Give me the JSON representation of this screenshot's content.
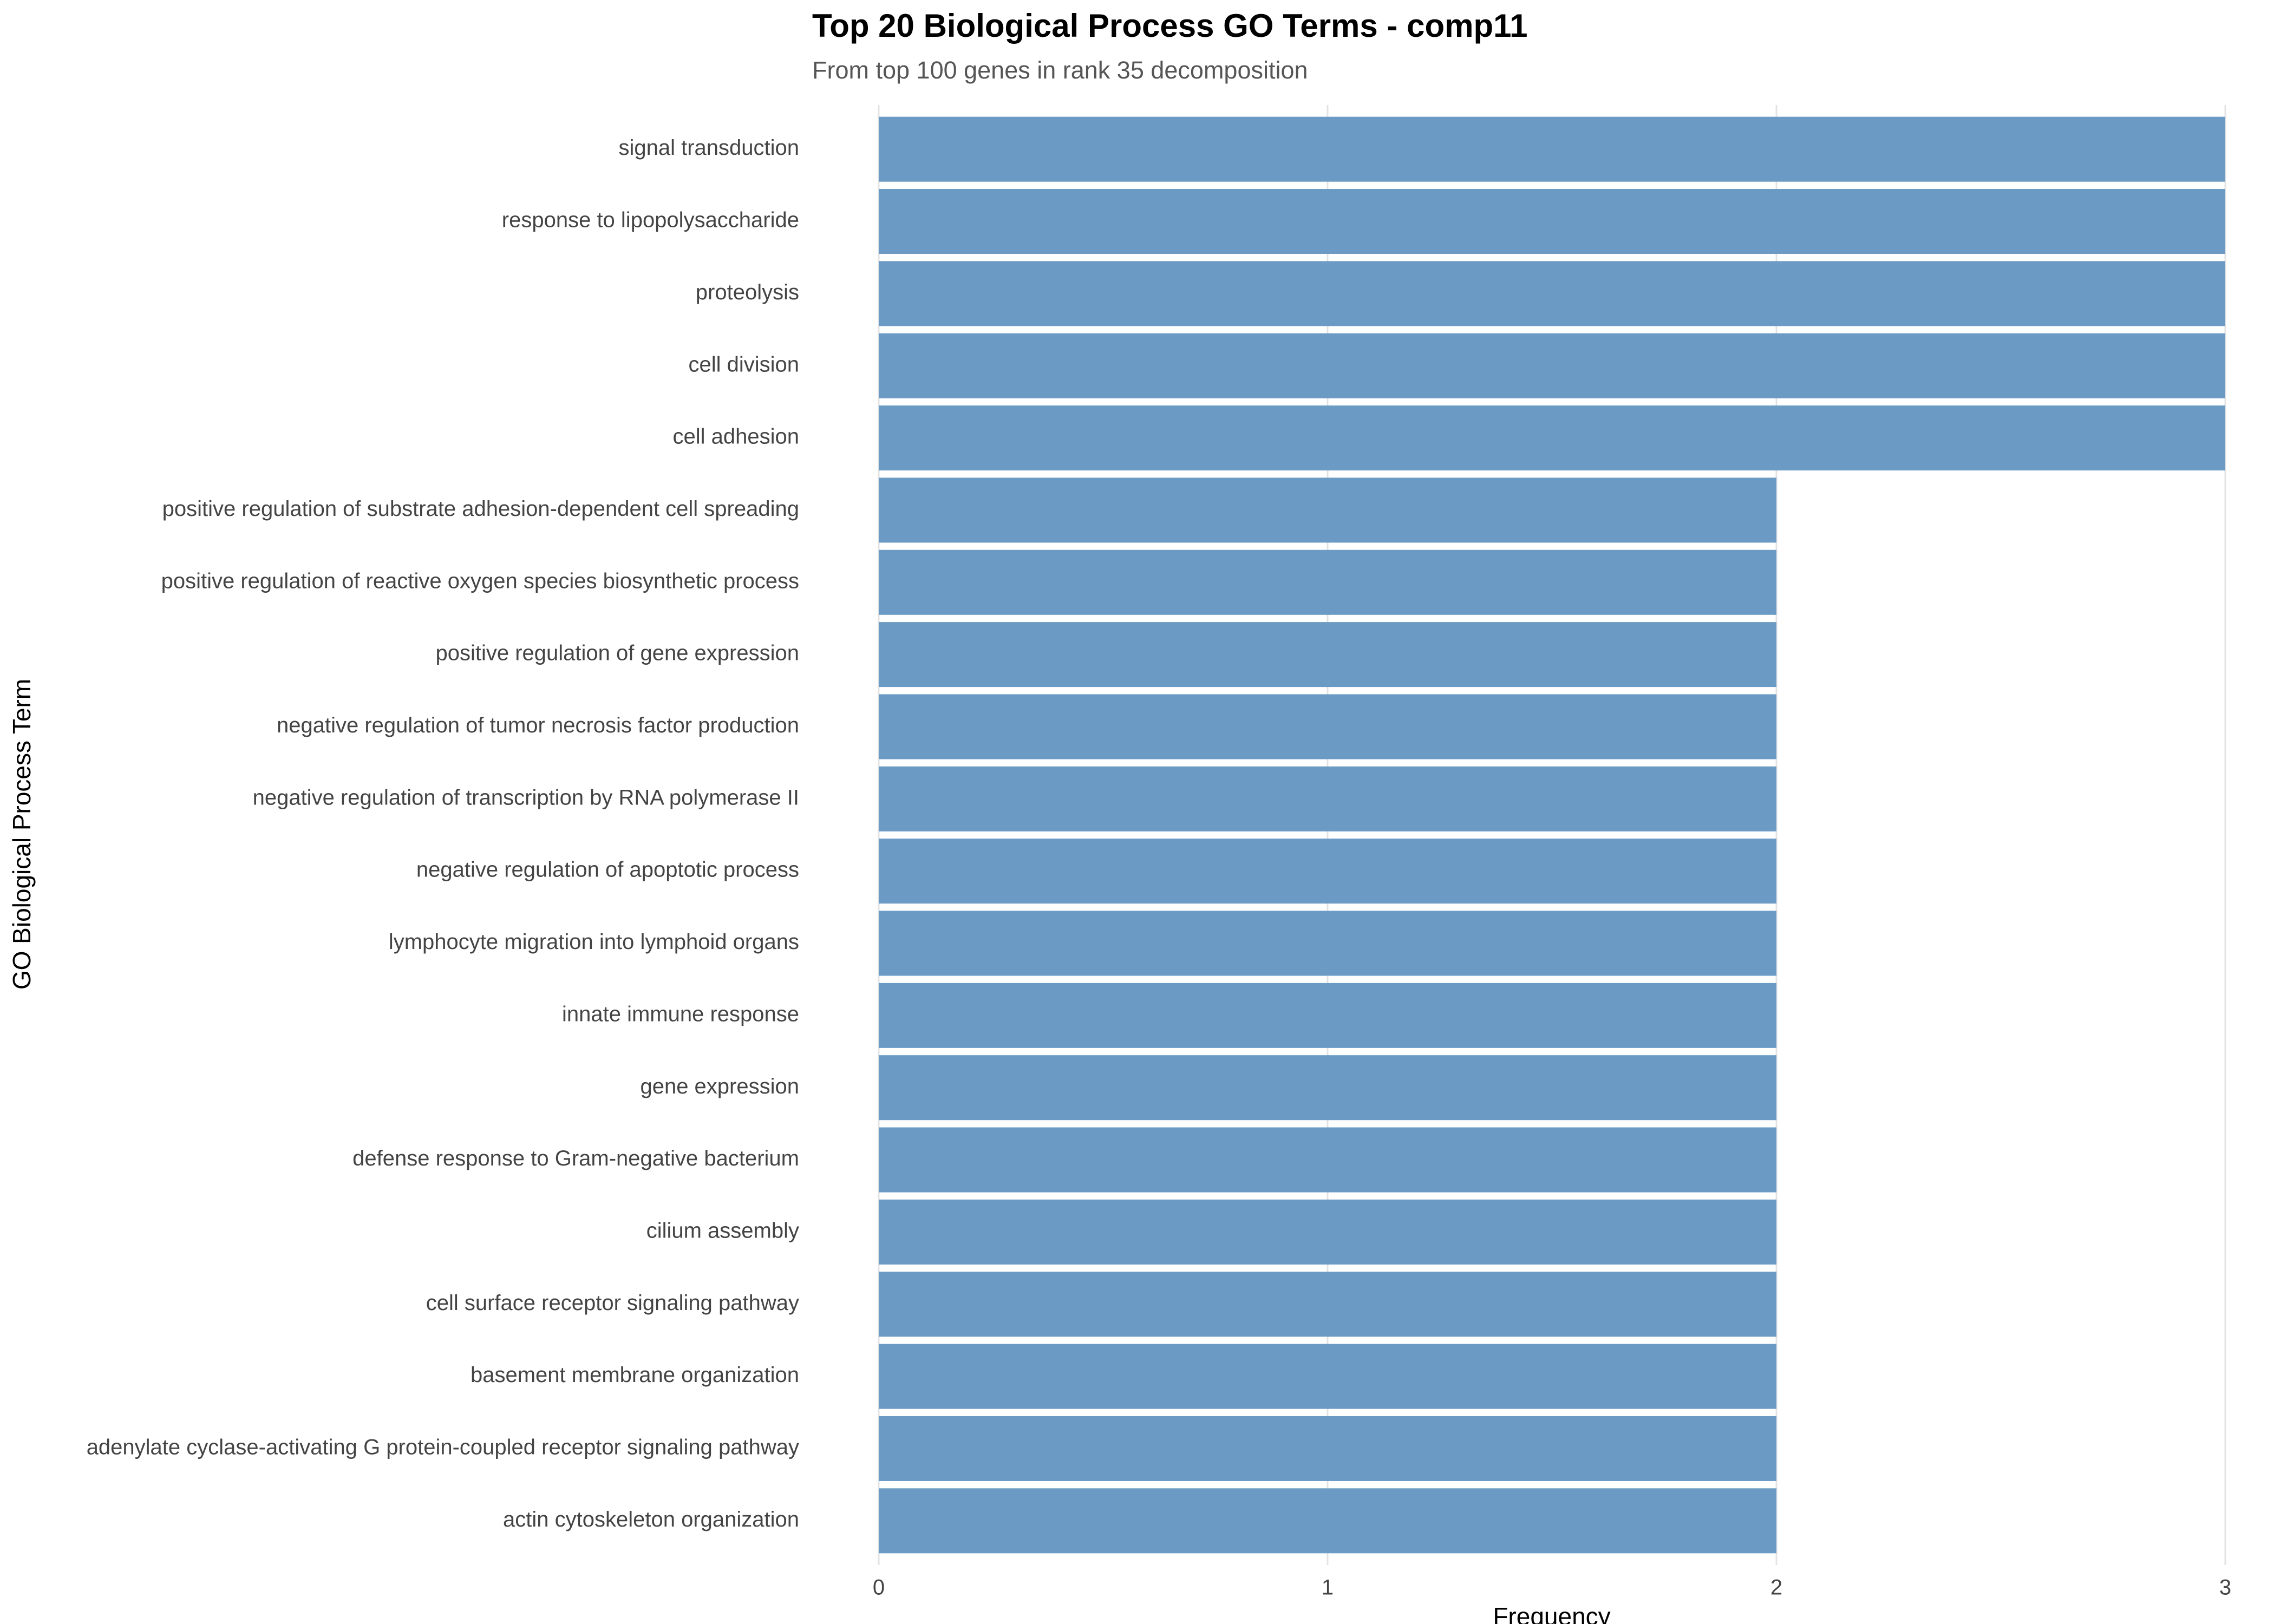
{
  "chart_data": {
    "type": "bar",
    "orientation": "horizontal",
    "title": "Top 20 Biological Process GO Terms - comp11",
    "subtitle": "From top 100 genes in rank 35 decomposition",
    "x_label": "Frequency",
    "y_label": "GO Biological Process Term",
    "categories": [
      "signal transduction",
      "response to lipopolysaccharide",
      "proteolysis",
      "cell division",
      "cell adhesion",
      "positive regulation of substrate adhesion-dependent cell spreading",
      "positive regulation of reactive oxygen species biosynthetic process",
      "positive regulation of gene expression",
      "negative regulation of tumor necrosis factor production",
      "negative regulation of transcription by RNA polymerase II",
      "negative regulation of apoptotic process",
      "lymphocyte migration into lymphoid organs",
      "innate immune response",
      "gene expression",
      "defense response to Gram-negative bacterium",
      "cilium assembly",
      "cell surface receptor signaling pathway",
      "basement membrane organization",
      "adenylate cyclase-activating G protein-coupled receptor signaling pathway",
      "actin cytoskeleton organization"
    ],
    "values": [
      3,
      3,
      3,
      3,
      3,
      2,
      2,
      2,
      2,
      2,
      2,
      2,
      2,
      2,
      2,
      2,
      2,
      2,
      2,
      2
    ],
    "color": "#6b9bc4",
    "xlim": [
      0,
      3
    ],
    "xticks": [
      0,
      1,
      2,
      3
    ],
    "grid": true
  }
}
